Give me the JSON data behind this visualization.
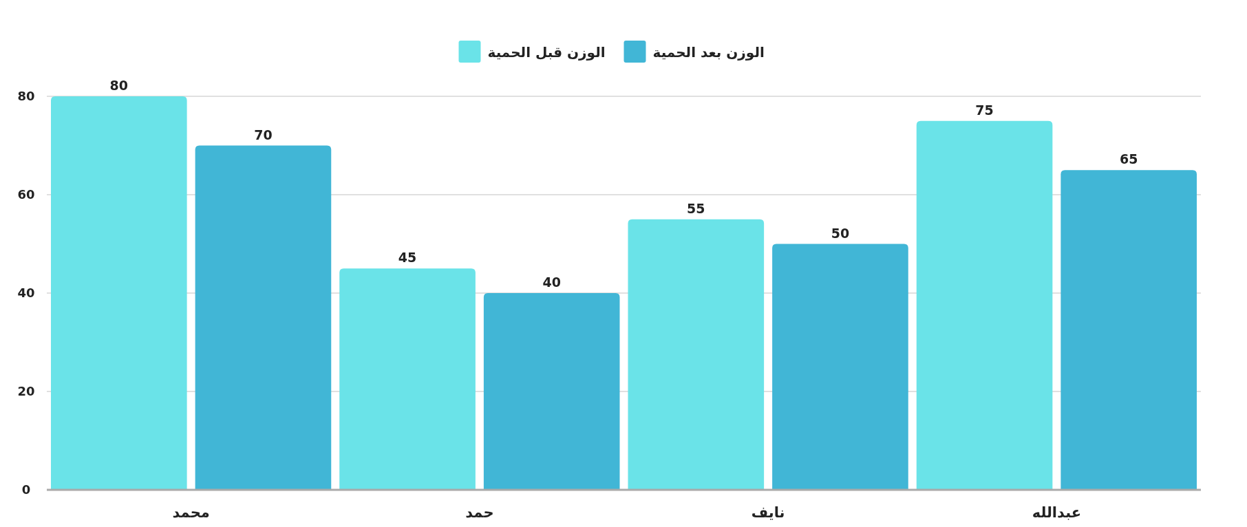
{
  "chart_data": {
    "type": "bar",
    "categories": [
      "محمد",
      "حمد",
      "نايف",
      "عبدالله"
    ],
    "series": [
      {
        "name": "الوزن قبل الحمية",
        "color": "#6ae3e8",
        "values": [
          80,
          45,
          55,
          75
        ]
      },
      {
        "name": "الوزن بعد الحمية",
        "color": "#41b6d6",
        "values": [
          70,
          40,
          50,
          65
        ]
      }
    ],
    "ylim": [
      0,
      80
    ],
    "yticks": [
      0,
      20,
      40,
      60,
      80
    ],
    "grid": "y",
    "legend": "top",
    "data_labels": true
  }
}
